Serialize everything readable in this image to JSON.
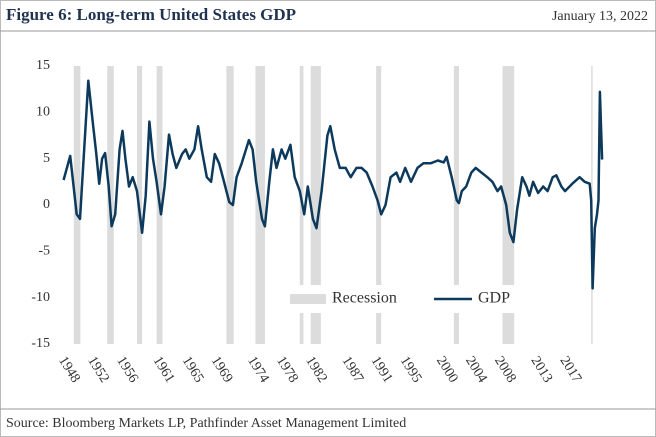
{
  "chart_data": {
    "type": "line",
    "title": "Figure 6: Long-term United States GDP",
    "date": "January 13, 2022",
    "source": "Source: Bloomberg Markets LP, Pathfinder Asset Management Limited",
    "x": [
      1947.5,
      1948.4,
      1949.3,
      1949.75,
      1950.9,
      1951.5,
      1952,
      1952.4,
      1952.8,
      1953.2,
      1953.7,
      1954.1,
      1954.6,
      1955.2,
      1955.6,
      1956,
      1956.5,
      1957,
      1957.6,
      1958.3,
      1958.8,
      1959.3,
      1959.8,
      1960.3,
      1960.9,
      1961.4,
      1962,
      1962.5,
      1963,
      1963.8,
      1964.3,
      1964.8,
      1965.5,
      1966,
      1966.5,
      1967.2,
      1967.8,
      1968.3,
      1968.9,
      1969.4,
      1970.3,
      1970.8,
      1971.3,
      1972,
      1973,
      1973.5,
      1974,
      1974.8,
      1975.2,
      1975.8,
      1976.3,
      1976.8,
      1977.5,
      1978,
      1978.7,
      1979.3,
      1980,
      1980.6,
      1981.1,
      1981.8,
      1982.3,
      1983,
      1983.8,
      1984.2,
      1984.8,
      1985.5,
      1986.3,
      1987,
      1987.8,
      1988.5,
      1989.2,
      1990,
      1990.7,
      1991.2,
      1991.8,
      1992.5,
      1993.3,
      1993.8,
      1994.5,
      1995.3,
      1996.2,
      1997,
      1998,
      1999,
      1999.8,
      2000.2,
      2000.9,
      2001.6,
      2001.9,
      2002.3,
      2002.9,
      2003.6,
      2004.2,
      2005,
      2005.8,
      2006.5,
      2007.2,
      2007.7,
      2008.4,
      2008.9,
      2009.4,
      2009.9,
      2010.6,
      2011.2,
      2011.6,
      2012.1,
      2012.8,
      2013.5,
      2014.1,
      2014.8,
      2015.3,
      2016,
      2016.5,
      2017.5,
      2018.5,
      2019.2,
      2019.9,
      2020.1,
      2020.3,
      2020.6,
      2020.9,
      2021.1,
      2021.3,
      2021.6
    ],
    "series": [
      {
        "name": "GDP",
        "color": "#0d3a5c",
        "values": [
          2.7,
          5.3,
          -1,
          -1.5,
          13.4,
          9,
          5.5,
          2.3,
          5,
          5.6,
          2,
          -2.3,
          -1,
          6,
          8,
          5,
          2,
          3,
          1.5,
          -3,
          1,
          9,
          5,
          2.5,
          -1,
          2,
          7.6,
          5.5,
          4,
          5.5,
          6,
          5,
          6,
          8.5,
          6,
          3,
          2.5,
          5.5,
          4.5,
          3,
          0.3,
          0,
          3,
          4.5,
          7,
          6,
          2.5,
          -1.5,
          -2.3,
          2.5,
          6,
          4,
          6,
          5,
          6.5,
          3,
          1.5,
          -1,
          2,
          -1.5,
          -2.5,
          1.5,
          7.5,
          8.5,
          6,
          4,
          4,
          3,
          4,
          4,
          3.5,
          2,
          0.5,
          -1,
          0,
          3,
          3.5,
          2.5,
          4,
          2.5,
          4,
          4.5,
          4.5,
          4.8,
          4.6,
          5.2,
          3,
          0.5,
          0.2,
          1.5,
          2,
          3.5,
          4,
          3.5,
          3,
          2.5,
          1.5,
          2,
          0,
          -3,
          -4,
          -0.5,
          3,
          2,
          1,
          2.5,
          1.3,
          2,
          1.5,
          3,
          3.2,
          2,
          1.5,
          2.3,
          3,
          2.5,
          2.3,
          0.5,
          -9,
          -2.5,
          -1,
          0.5,
          12.2,
          4.9
        ]
      }
    ],
    "recessions": {
      "name": "Recession",
      "color": "#dcdcdc",
      "spans": [
        [
          1948.9,
          1949.8
        ],
        [
          1953.5,
          1954.4
        ],
        [
          1957.6,
          1958.3
        ],
        [
          1960.3,
          1961.1
        ],
        [
          1969.9,
          1970.9
        ],
        [
          1973.9,
          1975.2
        ],
        [
          1980,
          1980.5
        ],
        [
          1981.5,
          1982.9
        ],
        [
          1990.5,
          1991.2
        ],
        [
          2001.2,
          2001.9
        ],
        [
          2007.9,
          2009.5
        ],
        [
          2020.1,
          2020.3
        ]
      ]
    },
    "xlim": [
      1947,
      2022
    ],
    "xticks": [
      1948,
      1952,
      1956,
      1961,
      1965,
      1969,
      1974,
      1978,
      1982,
      1987,
      1991,
      1995,
      2000,
      2004,
      2008,
      2013,
      2017
    ],
    "ylim": [
      -15,
      15
    ],
    "yticks": [
      15,
      10,
      5,
      0,
      -5,
      -10,
      -15
    ]
  }
}
